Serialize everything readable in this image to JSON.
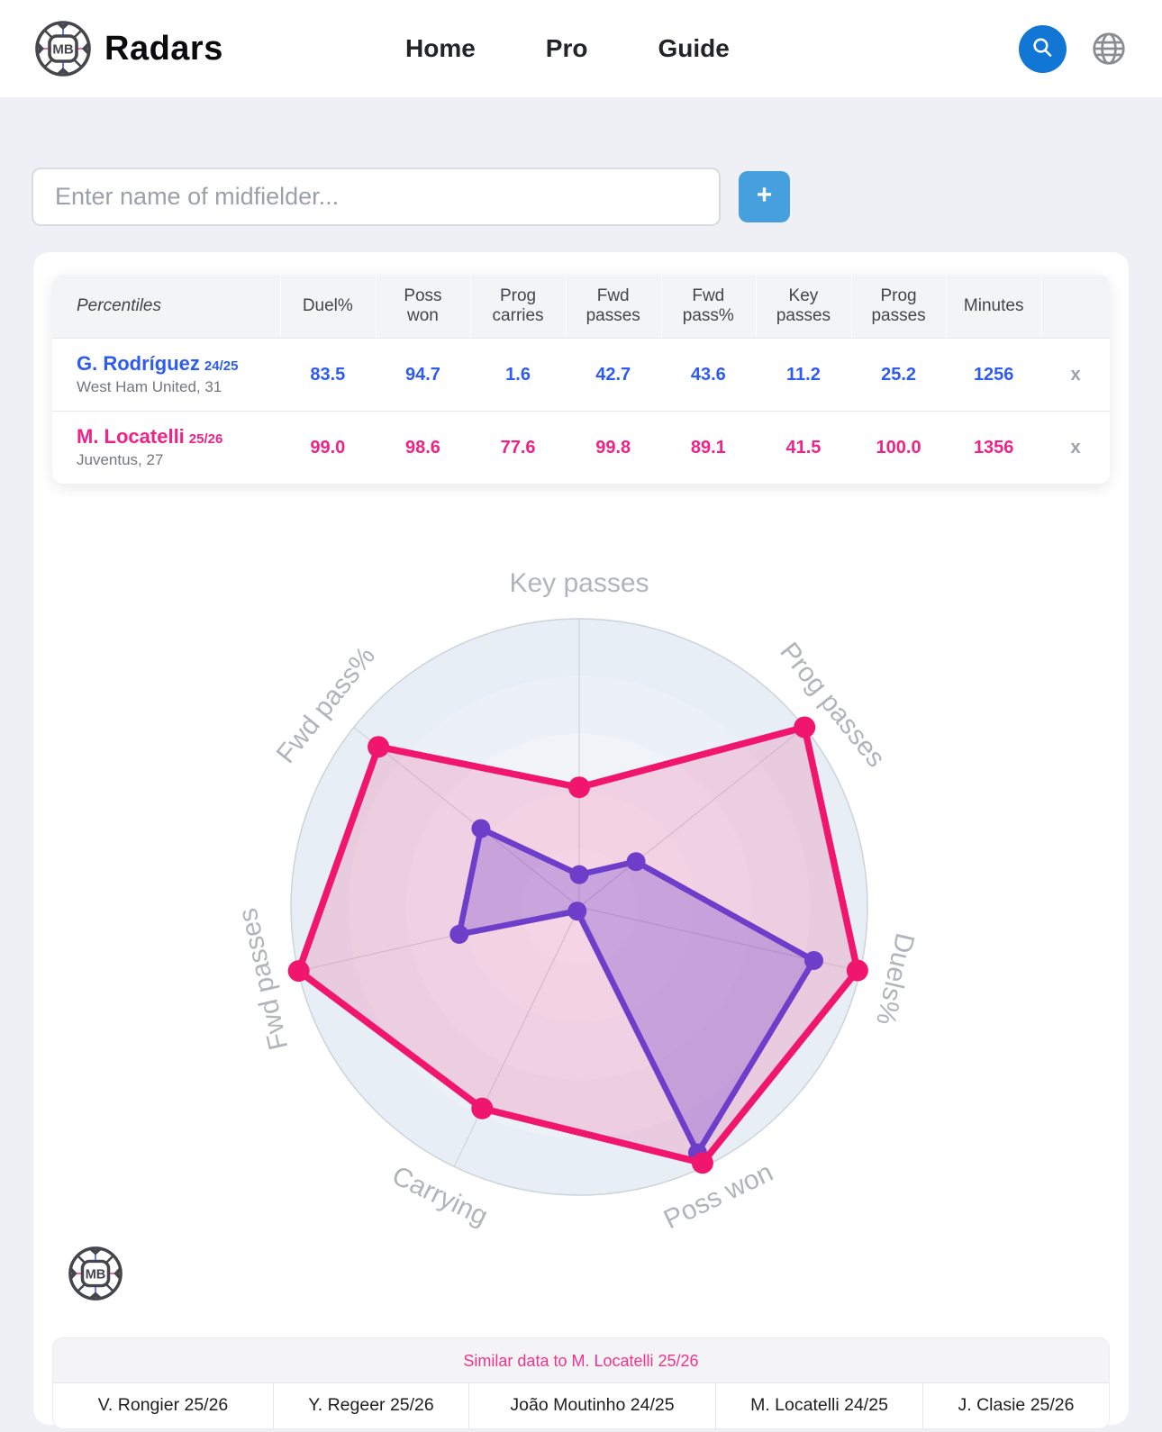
{
  "header": {
    "title": "Radars",
    "nav": [
      {
        "label": "Home"
      },
      {
        "label": "Pro"
      },
      {
        "label": "Guide"
      }
    ]
  },
  "search": {
    "placeholder": "Enter name of midfielder...",
    "add_label": "+"
  },
  "table": {
    "first_header": "Percentiles",
    "columns": [
      "Duel%",
      "Poss\nwon",
      "Prog\ncarries",
      "Fwd\npasses",
      "Fwd\npass%",
      "Key\npasses",
      "Prog\npasses",
      "Minutes"
    ],
    "rows": [
      {
        "name": "G. Rodríguez",
        "season": "24/25",
        "subtitle": "West Ham United, 31",
        "color": "#2e5bf0",
        "values": [
          "83.5",
          "94.7",
          "1.6",
          "42.7",
          "43.6",
          "11.2",
          "25.2",
          "1256"
        ],
        "remove_label": "x"
      },
      {
        "name": "M. Locatelli",
        "season": "25/26",
        "subtitle": "Juventus, 27",
        "color": "#f02288",
        "values": [
          "99.0",
          "98.6",
          "77.6",
          "99.8",
          "89.1",
          "41.5",
          "100.0",
          "1356"
        ],
        "remove_label": "x"
      }
    ]
  },
  "chart_data": {
    "type": "radar",
    "axes": [
      "Key passes",
      "Prog passes",
      "Duels%",
      "Poss won",
      "Carrying",
      "Fwd passes",
      "Fwd pass%"
    ],
    "max": 100,
    "grid_rings": 5,
    "ring_colors": [
      "#e8eef5",
      "#ecf1f7",
      "#f0f4f9",
      "#f3f6fa",
      "#f6f9fc"
    ],
    "axis_line_color": "#c8cdd3",
    "label_color": "#b1b5bb",
    "series": [
      {
        "name": "G. Rodríguez 24/25",
        "stroke": "#5446dc",
        "fill": "rgba(84,70,220,0.32)",
        "values": [
          11.2,
          25.2,
          83.5,
          94.7,
          1.6,
          42.7,
          43.6
        ]
      },
      {
        "name": "M. Locatelli 25/26",
        "stroke": "#f0166e",
        "fill": "rgba(240,22,110,0.16)",
        "values": [
          41.5,
          100.0,
          99.0,
          98.6,
          77.6,
          99.8,
          89.1
        ]
      }
    ]
  },
  "similar": {
    "title": "Similar data to M. Locatelli 25/26",
    "players": [
      "V. Rongier 25/26",
      "Y. Regeer 25/26",
      "João Moutinho 24/25",
      "M. Locatelli 24/25",
      "J. Clasie 25/26"
    ]
  }
}
